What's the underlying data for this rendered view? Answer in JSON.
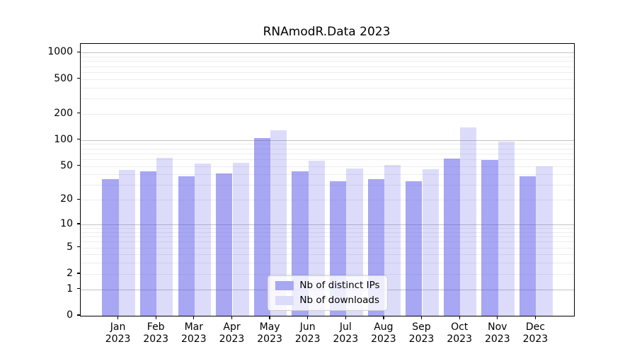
{
  "chart_data": {
    "type": "bar",
    "title": "RNAmodR.Data 2023",
    "year": "2023",
    "months": [
      "Jan",
      "Feb",
      "Mar",
      "Apr",
      "May",
      "Jun",
      "Jul",
      "Aug",
      "Sep",
      "Oct",
      "Nov",
      "Dec"
    ],
    "series": [
      {
        "name": "Nb of distinct IPs",
        "values": [
          35,
          43,
          38,
          41,
          105,
          43,
          33,
          35,
          33,
          61,
          59,
          38
        ],
        "fill": "rgba(80,80,232,0.5)",
        "swatch": "#a7a7f3"
      },
      {
        "name": "Nb of downloads",
        "values": [
          45,
          62,
          53,
          55,
          130,
          58,
          47,
          51,
          46,
          140,
          96,
          50
        ],
        "fill": "rgba(80,80,232,0.2)",
        "swatch": "#dcdcfa"
      }
    ],
    "yscale": "log1p",
    "yticks": [
      0,
      1,
      2,
      5,
      10,
      20,
      50,
      100,
      200,
      500,
      1000
    ],
    "major_gridlines": [
      1,
      10,
      100,
      1000
    ],
    "minor_gridline_decades": [
      1,
      10,
      100
    ],
    "ylim_top": 1258,
    "grid": true,
    "legend_position": "lower center",
    "colors": {
      "major_grid": "#c3c3c3",
      "minor_grid": "#ededed",
      "axis": "#000000",
      "background": "#ffffff"
    }
  }
}
